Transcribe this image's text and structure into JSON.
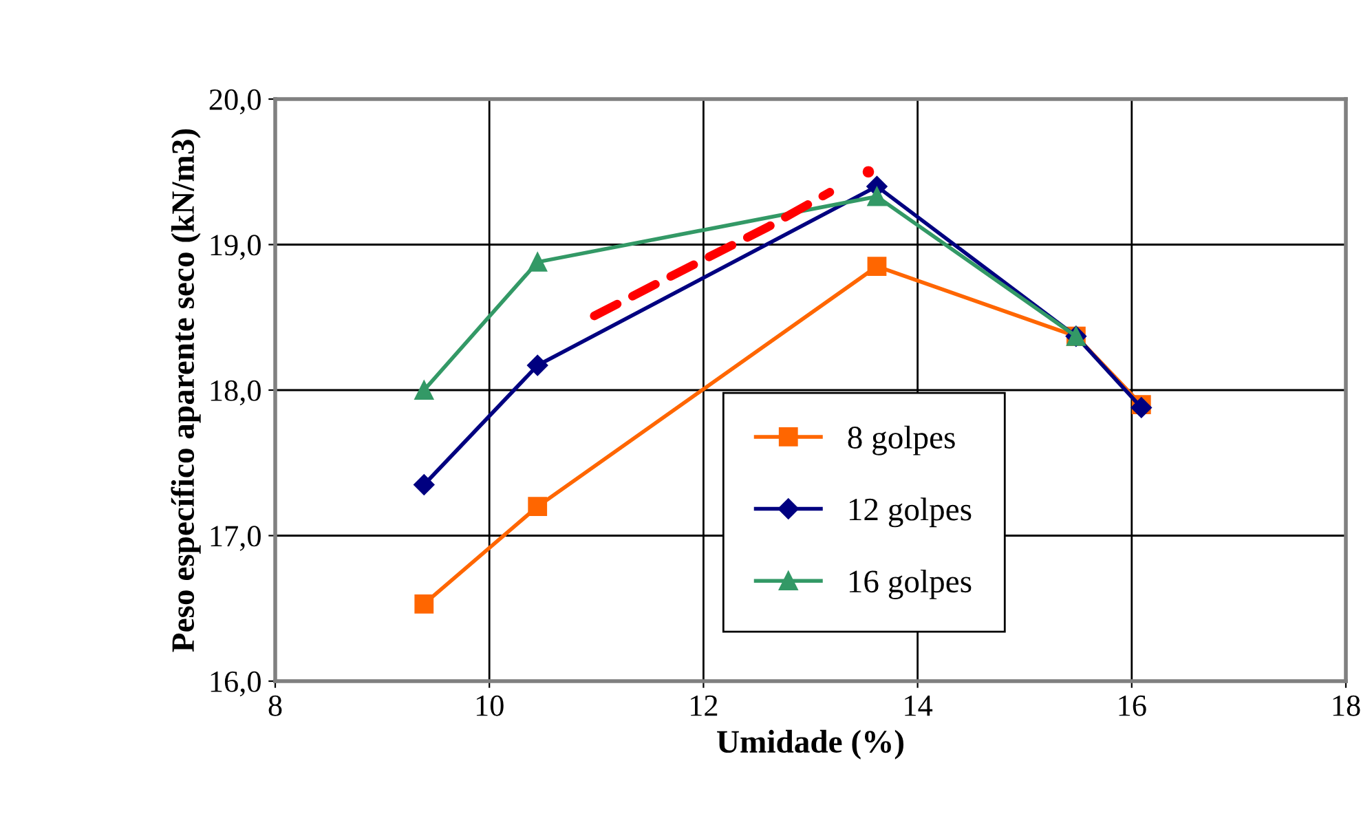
{
  "chart_data": {
    "type": "line",
    "xlabel": "Umidade (%)",
    "ylabel": "Peso específico aparente seco (kN/m3)",
    "xlim": [
      8,
      18
    ],
    "xticks": [
      8,
      10,
      12,
      14,
      16,
      18
    ],
    "ylim": [
      16,
      20
    ],
    "yticks": [
      {
        "value": 16,
        "label": "16,0"
      },
      {
        "value": 17,
        "label": "17,0"
      },
      {
        "value": 18,
        "label": "18,0"
      },
      {
        "value": 19,
        "label": "19,0"
      },
      {
        "value": 20,
        "label": "20,0"
      }
    ],
    "grid": true,
    "legend": "bottom",
    "line_style": "solid",
    "series": [
      {
        "name": "8 golpes",
        "color": "#ff6600",
        "marker": "square",
        "x": [
          9.39,
          10.45,
          13.62,
          15.48,
          16.09
        ],
        "values": [
          16.53,
          17.2,
          18.85,
          18.37,
          17.9
        ]
      },
      {
        "name": "12 golpes",
        "color": "#000080",
        "marker": "diamond",
        "x": [
          9.39,
          10.45,
          13.62,
          15.48,
          16.09
        ],
        "values": [
          17.35,
          18.17,
          19.4,
          18.37,
          17.88
        ]
      },
      {
        "name": "16 golpes",
        "color": "#339966",
        "marker": "triangle",
        "x": [
          9.39,
          10.45,
          13.62,
          15.48
        ],
        "values": [
          18.0,
          18.88,
          19.33,
          18.37
        ]
      },
      {
        "color": "#ff0000",
        "marker": "none",
        "line_style": "dashed",
        "x": [
          10.98,
          11.77,
          12.6,
          13.18
        ],
        "values": [
          18.51,
          18.81,
          19.12,
          19.36
        ]
      },
      {
        "type": "scatter",
        "color": "#ff0000",
        "marker": "circle",
        "x": [
          13.54
        ],
        "values": [
          19.5
        ]
      }
    ]
  }
}
